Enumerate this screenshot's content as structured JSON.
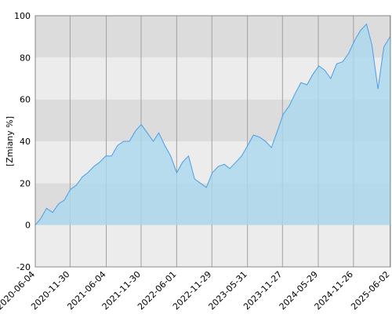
{
  "chart_data": {
    "type": "area",
    "ylabel": "[Zmiany %]",
    "xlim": [
      "2020-06-04",
      "2025-06-04"
    ],
    "ylim": [
      -20,
      100
    ],
    "yticks": [
      -20,
      0,
      20,
      40,
      60,
      80,
      100
    ],
    "xticks": [
      "2020-06-04",
      "2020-11-30",
      "2021-06-04",
      "2021-11-30",
      "2022-06-01",
      "2022-11-29",
      "2023-05-31",
      "2023-11-27",
      "2024-05-29",
      "2024-11-26",
      "2025-06-02"
    ],
    "grid": true,
    "series": [
      {
        "color": "#4a9de8",
        "fill": "#a9d8ee",
        "x": [
          "2020-06-04",
          "2020-07-01",
          "2020-08-01",
          "2020-09-01",
          "2020-10-01",
          "2020-11-01",
          "2020-12-01",
          "2021-01-01",
          "2021-02-01",
          "2021-03-01",
          "2021-04-01",
          "2021-05-01",
          "2021-06-01",
          "2021-07-01",
          "2021-08-01",
          "2021-09-01",
          "2021-10-01",
          "2021-11-01",
          "2021-12-01",
          "2022-01-01",
          "2022-02-01",
          "2022-03-01",
          "2022-04-01",
          "2022-05-01",
          "2022-06-01",
          "2022-07-01",
          "2022-08-01",
          "2022-09-01",
          "2022-10-01",
          "2022-11-01",
          "2022-12-01",
          "2023-01-01",
          "2023-02-01",
          "2023-03-01",
          "2023-04-01",
          "2023-05-01",
          "2023-06-01",
          "2023-07-01",
          "2023-08-01",
          "2023-09-01",
          "2023-10-01",
          "2023-11-01",
          "2023-12-01",
          "2024-01-01",
          "2024-02-01",
          "2024-03-01",
          "2024-04-01",
          "2024-05-01",
          "2024-06-01",
          "2024-07-01",
          "2024-08-01",
          "2024-09-01",
          "2024-10-01",
          "2024-11-01",
          "2024-12-01",
          "2025-01-01",
          "2025-02-01",
          "2025-03-01",
          "2025-04-01",
          "2025-05-01",
          "2025-06-02"
        ],
        "values": [
          0,
          3,
          8,
          6,
          10,
          12,
          17,
          19,
          23,
          25,
          28,
          30,
          33,
          33,
          38,
          40,
          40,
          45,
          48,
          44,
          40,
          44,
          38,
          33,
          25,
          30,
          33,
          22,
          20,
          18,
          25,
          28,
          29,
          27,
          30,
          33,
          38,
          43,
          42,
          40,
          37,
          45,
          53,
          57,
          63,
          68,
          67,
          72,
          76,
          74,
          70,
          77,
          78,
          82,
          88,
          93,
          96,
          86,
          65,
          85,
          90
        ]
      }
    ]
  }
}
